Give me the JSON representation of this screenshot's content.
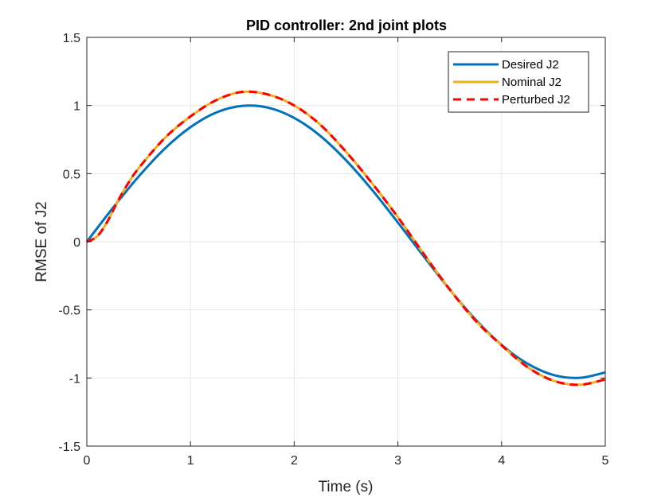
{
  "chart_data": {
    "type": "line",
    "title": "PID controller: 2nd joint plots",
    "xlabel": "Time (s)",
    "ylabel": "RMSE of J2",
    "xlim": [
      0,
      5
    ],
    "ylim": [
      -1.5,
      1.5
    ],
    "xticks": [
      0,
      1,
      2,
      3,
      4,
      5
    ],
    "xtick_labels": [
      "0",
      "1",
      "2",
      "3",
      "4",
      "5"
    ],
    "yticks": [
      -1.5,
      -1,
      -0.5,
      0,
      0.5,
      1,
      1.5
    ],
    "ytick_labels": [
      "-1.5",
      "-1",
      "-0.5",
      "0",
      "0.5",
      "1",
      "1.5"
    ],
    "grid": true,
    "legend_position": "top-right",
    "series": [
      {
        "name": "Desired J2",
        "color": "#0072BD",
        "style": "solid",
        "x": [
          0,
          0.25,
          0.5,
          0.75,
          1.0,
          1.25,
          1.5,
          1.75,
          2.0,
          2.25,
          2.5,
          2.75,
          3.0,
          3.25,
          3.5,
          3.75,
          4.0,
          4.25,
          4.5,
          4.75,
          5.0
        ],
        "y": [
          0,
          0.247,
          0.479,
          0.682,
          0.841,
          0.949,
          0.997,
          0.984,
          0.909,
          0.778,
          0.598,
          0.382,
          0.141,
          -0.108,
          -0.351,
          -0.572,
          -0.757,
          -0.895,
          -0.978,
          -0.999,
          -0.959
        ]
      },
      {
        "name": "Nominal J2",
        "color": "#EDB120",
        "style": "solid",
        "x": [
          0,
          0.1,
          0.2,
          0.3,
          0.4,
          0.5,
          0.75,
          1.0,
          1.25,
          1.5,
          1.75,
          2.0,
          2.25,
          2.5,
          2.75,
          3.0,
          3.25,
          3.5,
          3.75,
          4.0,
          4.25,
          4.5,
          4.75,
          5.0
        ],
        "y": [
          0,
          0.04,
          0.15,
          0.3,
          0.43,
          0.54,
          0.76,
          0.92,
          1.04,
          1.1,
          1.08,
          1.0,
          0.86,
          0.66,
          0.43,
          0.18,
          -0.09,
          -0.35,
          -0.58,
          -0.76,
          -0.92,
          -1.02,
          -1.05,
          -1.01
        ]
      },
      {
        "name": "Perturbed J2",
        "color": "#FF0000",
        "style": "dashed",
        "x": [
          0,
          0.1,
          0.2,
          0.3,
          0.4,
          0.5,
          0.75,
          1.0,
          1.25,
          1.5,
          1.75,
          2.0,
          2.25,
          2.5,
          2.75,
          3.0,
          3.25,
          3.5,
          3.75,
          4.0,
          4.25,
          4.5,
          4.75,
          5.0
        ],
        "y": [
          0,
          0.04,
          0.15,
          0.3,
          0.43,
          0.54,
          0.76,
          0.92,
          1.04,
          1.1,
          1.08,
          1.0,
          0.86,
          0.66,
          0.43,
          0.18,
          -0.09,
          -0.35,
          -0.58,
          -0.76,
          -0.92,
          -1.02,
          -1.05,
          -1.01
        ]
      }
    ]
  }
}
